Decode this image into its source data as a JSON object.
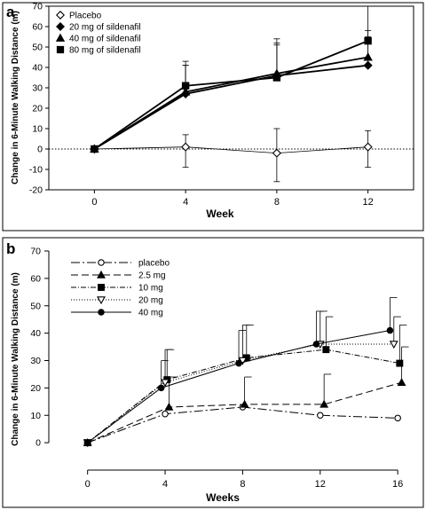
{
  "chart_data": [
    {
      "type": "line",
      "panel_label": "a",
      "title": "",
      "xlabel": "Week",
      "ylabel": "Change in 6-Minute Walking Distance (m)",
      "xlim": [
        -2,
        14
      ],
      "ylim": [
        -20,
        70
      ],
      "xticks": [
        0,
        4,
        8,
        12
      ],
      "yticks": [
        -20,
        -10,
        0,
        10,
        20,
        30,
        40,
        50,
        60,
        70
      ],
      "grid": false,
      "legend_position": "top-left",
      "reference_line": 0,
      "series": [
        {
          "name": "Placebo",
          "marker": "diamond-open",
          "x": [
            0,
            4,
            8,
            12
          ],
          "y": [
            0,
            1,
            -2,
            1
          ],
          "err_hi": [
            0,
            6,
            12,
            8
          ],
          "err_lo": [
            0,
            10,
            14,
            10
          ]
        },
        {
          "name": "20 mg of sildenafil",
          "marker": "diamond",
          "x": [
            0,
            4,
            8,
            12
          ],
          "y": [
            0,
            27,
            36,
            41
          ],
          "err_hi": [
            0,
            14,
            18,
            14
          ],
          "err_lo": [
            0,
            0,
            0,
            0
          ]
        },
        {
          "name": "40 mg of sildenafil",
          "marker": "triangle",
          "x": [
            0,
            4,
            8,
            12
          ],
          "y": [
            0,
            28,
            37,
            45
          ],
          "err_hi": [
            0,
            13,
            14,
            13
          ],
          "err_lo": [
            0,
            0,
            0,
            0
          ]
        },
        {
          "name": "80 mg of sildenafil",
          "marker": "square",
          "x": [
            0,
            4,
            8,
            12
          ],
          "y": [
            0,
            31,
            35,
            53
          ],
          "err_hi": [
            0,
            12,
            17,
            17
          ],
          "err_lo": [
            0,
            0,
            0,
            0
          ]
        }
      ]
    },
    {
      "type": "line",
      "panel_label": "b",
      "title": "",
      "xlabel": "Weeks",
      "ylabel": "Change in 6-Minute Walking Distance (m)",
      "xlim": [
        -2,
        17
      ],
      "ylim": [
        -10,
        70
      ],
      "xticks": [
        0,
        4,
        8,
        12,
        16
      ],
      "yticks": [
        0,
        10,
        20,
        30,
        40,
        50,
        60,
        70
      ],
      "grid": false,
      "legend_position": "top-left",
      "series": [
        {
          "name": "placebo",
          "marker": "circle-open",
          "dash": "10,3,2,3",
          "x": [
            0,
            4,
            8,
            12,
            16
          ],
          "y": [
            0,
            10.5,
            13,
            10,
            9
          ],
          "err_hi": [
            0,
            0,
            0,
            0,
            0
          ]
        },
        {
          "name": "2.5 mg",
          "marker": "triangle",
          "dash": "8,4",
          "x": [
            0,
            4.2,
            8.1,
            12.2,
            16.2
          ],
          "y": [
            0,
            13,
            14,
            14,
            22
          ],
          "err_hi": [
            0,
            11,
            10,
            11,
            13
          ]
        },
        {
          "name": "10 mg",
          "marker": "square",
          "dash": "6,2,1,2",
          "x": [
            0,
            4.1,
            8.2,
            12.3,
            16.1
          ],
          "y": [
            0,
            23,
            31,
            34,
            29
          ],
          "err_hi": [
            0,
            11,
            12,
            12,
            14
          ]
        },
        {
          "name": "20 mg",
          "marker": "triangle-down-open",
          "dash": "1,2",
          "x": [
            0,
            4,
            8,
            12,
            15.8
          ],
          "y": [
            0,
            22,
            30,
            36,
            36
          ],
          "err_hi": [
            0,
            12,
            13,
            12,
            10
          ]
        },
        {
          "name": "40 mg",
          "marker": "circle",
          "dash": "",
          "x": [
            0,
            3.8,
            7.8,
            11.8,
            15.6
          ],
          "y": [
            0,
            20,
            29,
            36,
            41
          ],
          "err_hi": [
            0,
            10,
            12,
            12,
            12
          ]
        }
      ]
    }
  ]
}
